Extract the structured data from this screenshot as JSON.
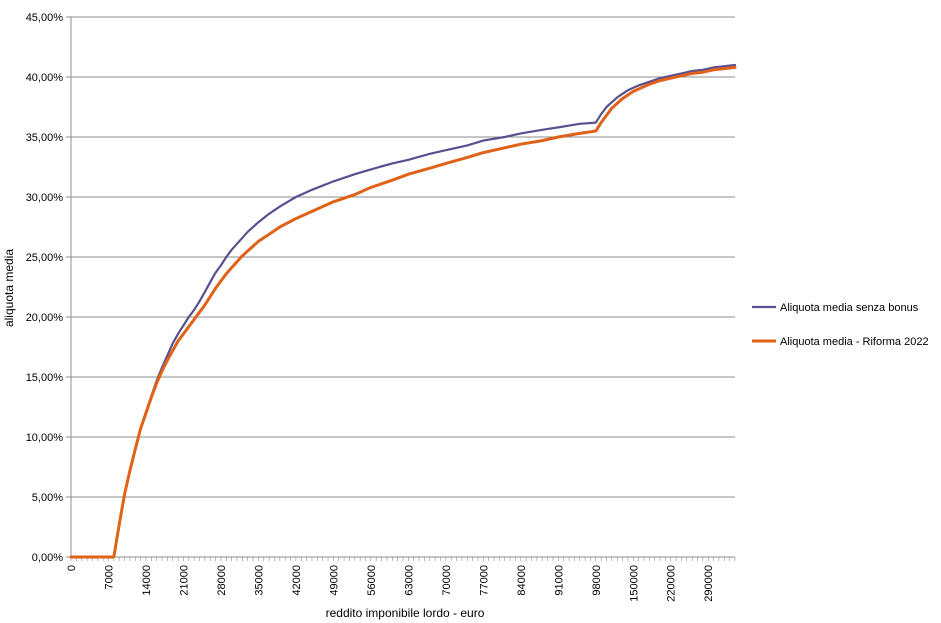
{
  "chart_data": {
    "type": "line",
    "xlabel": "reddito imponibile lordo - euro",
    "ylabel": "aliquota media",
    "ylim": [
      0,
      45
    ],
    "y_ticks": [
      "0,00%",
      "5,00%",
      "10,00%",
      "15,00%",
      "20,00%",
      "25,00%",
      "30,00%",
      "35,00%",
      "40,00%",
      "45,00%"
    ],
    "x_tick_labels": [
      "0",
      "7000",
      "14000",
      "21000",
      "28000",
      "35000",
      "42000",
      "49000",
      "56000",
      "63000",
      "70000",
      "77000",
      "84000",
      "91000",
      "98000",
      "150000",
      "220000",
      "290000"
    ],
    "x_tick_positions": [
      0,
      7,
      14,
      21,
      28,
      35,
      42,
      49,
      56,
      63,
      70,
      77,
      84,
      91,
      98,
      105,
      112,
      119
    ],
    "x_extent": [
      0,
      124
    ],
    "grid": true,
    "legend_position": "right",
    "series": [
      {
        "name": "Aliquota media senza bonus",
        "color": "#5a5090",
        "x": [
          0,
          4,
          8,
          9,
          10,
          11,
          12,
          13,
          14,
          15,
          16,
          17,
          18,
          19,
          20,
          21,
          22,
          23,
          24,
          25,
          26,
          27,
          28,
          29,
          30,
          31,
          32,
          33,
          35,
          37,
          39,
          42,
          45,
          49,
          53,
          56,
          60,
          63,
          67,
          70,
          74,
          77,
          81,
          84,
          88,
          91,
          95,
          98,
          99,
          100,
          101,
          102,
          103,
          104,
          105,
          106,
          108,
          110,
          112,
          114,
          116,
          118,
          120,
          122,
          124
        ],
        "values": [
          0,
          0,
          0,
          2.7,
          5.2,
          7.2,
          9.0,
          10.7,
          12.1,
          13.4,
          14.7,
          15.8,
          16.8,
          17.8,
          18.6,
          19.3,
          20.0,
          20.6,
          21.3,
          22.1,
          22.9,
          23.7,
          24.3,
          25.0,
          25.6,
          26.1,
          26.6,
          27.1,
          27.9,
          28.6,
          29.2,
          30.0,
          30.6,
          31.3,
          31.9,
          32.3,
          32.8,
          33.1,
          33.6,
          33.9,
          34.3,
          34.7,
          35.0,
          35.3,
          35.6,
          35.8,
          36.1,
          36.2,
          36.9,
          37.5,
          37.9,
          38.3,
          38.6,
          38.9,
          39.1,
          39.3,
          39.6,
          39.9,
          40.1,
          40.3,
          40.5,
          40.6,
          40.8,
          40.9,
          41.0
        ]
      },
      {
        "name": "Aliquota media - Riforma 2022",
        "color": "#e06218",
        "x": [
          0,
          4,
          8,
          9,
          10,
          11,
          12,
          13,
          14,
          15,
          16,
          17,
          18,
          19,
          20,
          21,
          22,
          23,
          24,
          25,
          26,
          27,
          28,
          29,
          30,
          31,
          32,
          33,
          35,
          37,
          39,
          42,
          45,
          49,
          53,
          56,
          60,
          63,
          67,
          70,
          74,
          77,
          81,
          84,
          88,
          91,
          95,
          98,
          99,
          100,
          101,
          102,
          103,
          104,
          105,
          106,
          108,
          110,
          112,
          114,
          116,
          118,
          120,
          122,
          124
        ],
        "values": [
          0,
          0,
          0,
          2.7,
          5.2,
          7.2,
          9.0,
          10.7,
          12.0,
          13.3,
          14.5,
          15.5,
          16.4,
          17.2,
          18.0,
          18.6,
          19.2,
          19.8,
          20.4,
          21.0,
          21.7,
          22.4,
          23.0,
          23.6,
          24.1,
          24.6,
          25.1,
          25.5,
          26.3,
          26.9,
          27.5,
          28.2,
          28.8,
          29.6,
          30.2,
          30.8,
          31.4,
          31.9,
          32.4,
          32.8,
          33.3,
          33.7,
          34.1,
          34.4,
          34.7,
          35.0,
          35.3,
          35.5,
          36.2,
          36.8,
          37.4,
          37.8,
          38.2,
          38.5,
          38.8,
          39.0,
          39.4,
          39.7,
          39.9,
          40.1,
          40.3,
          40.4,
          40.6,
          40.7,
          40.8
        ]
      }
    ]
  }
}
